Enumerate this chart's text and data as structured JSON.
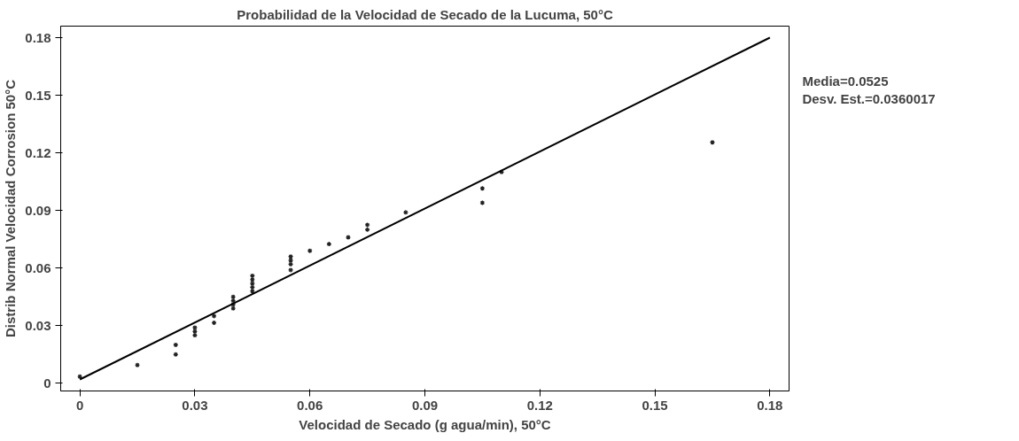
{
  "chart_data": {
    "type": "scatter",
    "title": "Probabilidad de la Velocidad de Secado de la Lucuma, 50°C",
    "xlabel": "Velocidad de Secado (g agua/min), 50°C",
    "ylabel": "Distrib Normal Velocidad Corrosion 50°C",
    "series": [
      {
        "color": "#222222",
        "marker": "cross",
        "x": [
          0,
          0.015,
          0.025,
          0.025,
          0.03,
          0.03,
          0.03,
          0.035,
          0.035,
          0.04,
          0.04,
          0.04,
          0.04,
          0.045,
          0.045,
          0.045,
          0.045,
          0.045,
          0.055,
          0.055,
          0.055,
          0.055,
          0.06,
          0.065,
          0.07,
          0.075,
          0.075,
          0.085,
          0.105,
          0.105,
          0.11,
          0.165
        ],
        "values": [
          0.0035,
          0.0095,
          0.015,
          0.02,
          0.025,
          0.027,
          0.029,
          0.0315,
          0.035,
          0.039,
          0.041,
          0.043,
          0.045,
          0.048,
          0.05,
          0.052,
          0.054,
          0.056,
          0.059,
          0.062,
          0.064,
          0.066,
          0.069,
          0.0725,
          0.076,
          0.08,
          0.0825,
          0.089,
          0.094,
          0.1015,
          0.11,
          0.1255
        ]
      },
      {
        "type": "line",
        "color": "#000000",
        "x": [
          0,
          0.18
        ],
        "values": [
          0.002,
          0.18
        ]
      }
    ],
    "xlim": [
      -0.005,
      0.185
    ],
    "ylim": [
      -0.004,
      0.186
    ],
    "xticks": [
      0,
      0.03,
      0.06,
      0.09,
      0.12,
      0.15,
      0.18
    ],
    "yticks": [
      0,
      0.03,
      0.06,
      0.09,
      0.12,
      0.15,
      0.18
    ],
    "grid": false,
    "annotations": [
      "Media=0.0525",
      "Desv. Est.=0.0360017"
    ]
  }
}
